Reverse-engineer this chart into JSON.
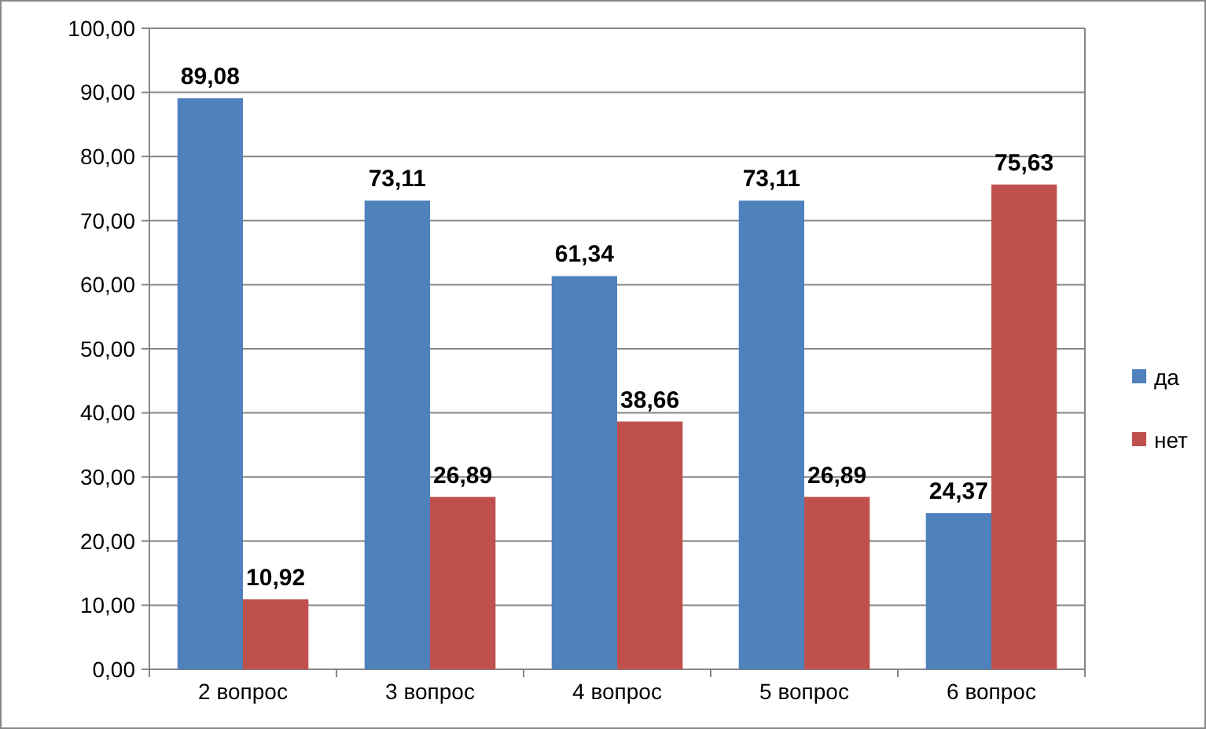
{
  "chart_data": {
    "type": "bar",
    "categories": [
      "2 вопрос",
      "3 вопрос",
      "4 вопрос",
      "5 вопрос",
      "6 вопрос"
    ],
    "series": [
      {
        "name": "да",
        "color": "#4f81bd",
        "values": [
          89.08,
          73.11,
          61.34,
          73.11,
          24.37
        ],
        "value_labels": [
          "89,08",
          "73,11",
          "61,34",
          "73,11",
          "24,37"
        ]
      },
      {
        "name": "нет",
        "color": "#c0504d",
        "values": [
          10.92,
          26.89,
          38.66,
          26.89,
          75.63
        ],
        "value_labels": [
          "10,92",
          "26,89",
          "38,66",
          "26,89",
          "75,63"
        ]
      }
    ],
    "ylim": [
      0,
      100
    ],
    "yticks": [
      {
        "value": 0,
        "label": "0,00"
      },
      {
        "value": 10,
        "label": "10,00"
      },
      {
        "value": 20,
        "label": "20,00"
      },
      {
        "value": 30,
        "label": "30,00"
      },
      {
        "value": 40,
        "label": "40,00"
      },
      {
        "value": 50,
        "label": "50,00"
      },
      {
        "value": 60,
        "label": "60,00"
      },
      {
        "value": 70,
        "label": "70,00"
      },
      {
        "value": 80,
        "label": "80,00"
      },
      {
        "value": 90,
        "label": "90,00"
      },
      {
        "value": 100,
        "label": "100,00"
      }
    ],
    "grid": "y",
    "legend": "right"
  }
}
